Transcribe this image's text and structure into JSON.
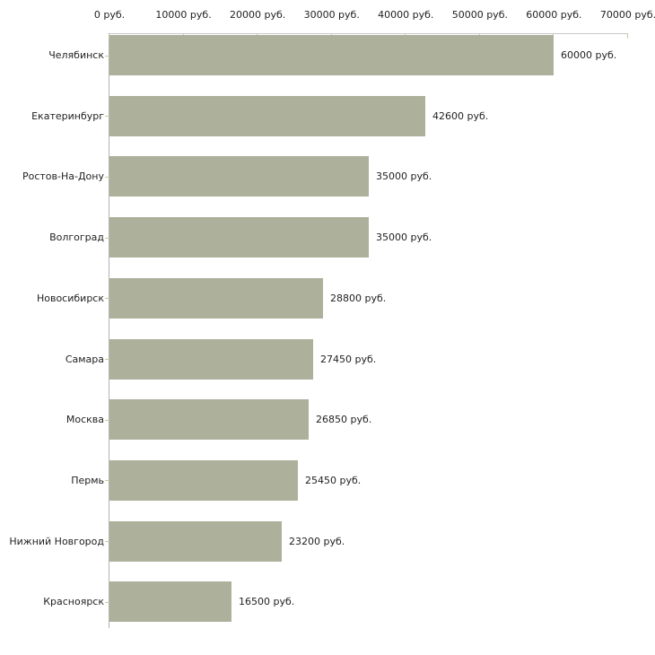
{
  "chart_data": {
    "type": "bar",
    "orientation": "horizontal",
    "title": "",
    "xlabel": "",
    "ylabel": "",
    "grid": false,
    "legend": null,
    "x_axis": {
      "position": "top",
      "min": 0,
      "max": 70000,
      "tick_step": 10000,
      "tick_values": [
        0,
        10000,
        20000,
        30000,
        40000,
        50000,
        60000,
        70000
      ],
      "tick_labels": [
        "0 руб.",
        "10000 руб.",
        "20000 руб.",
        "30000 руб.",
        "40000 руб.",
        "50000 руб.",
        "60000 руб.",
        "70000 руб."
      ]
    },
    "categories": [
      "Челябинск",
      "Екатеринбург",
      "Ростов-На-Дону",
      "Волгоград",
      "Новосибирск",
      "Самара",
      "Москва",
      "Пермь",
      "Нижний Новгород",
      "Красноярск"
    ],
    "values": [
      60000,
      42600,
      35000,
      35000,
      28800,
      27450,
      26850,
      25450,
      23200,
      16500
    ],
    "value_labels": [
      "60000 руб.",
      "42600 руб.",
      "35000 руб.",
      "35000 руб.",
      "28800 руб.",
      "27450 руб.",
      "26850 руб.",
      "25450 руб.",
      "23200 руб.",
      "16500 руб."
    ],
    "colors": {
      "bar_fill": "#adb19c",
      "axis_line_x": "#c9c9c9",
      "axis_line_y": "#b3b3b3",
      "tick_mark": "#c5c99b",
      "category_tick": "#c8cba6",
      "text": "#222222",
      "background": "#ffffff"
    }
  }
}
